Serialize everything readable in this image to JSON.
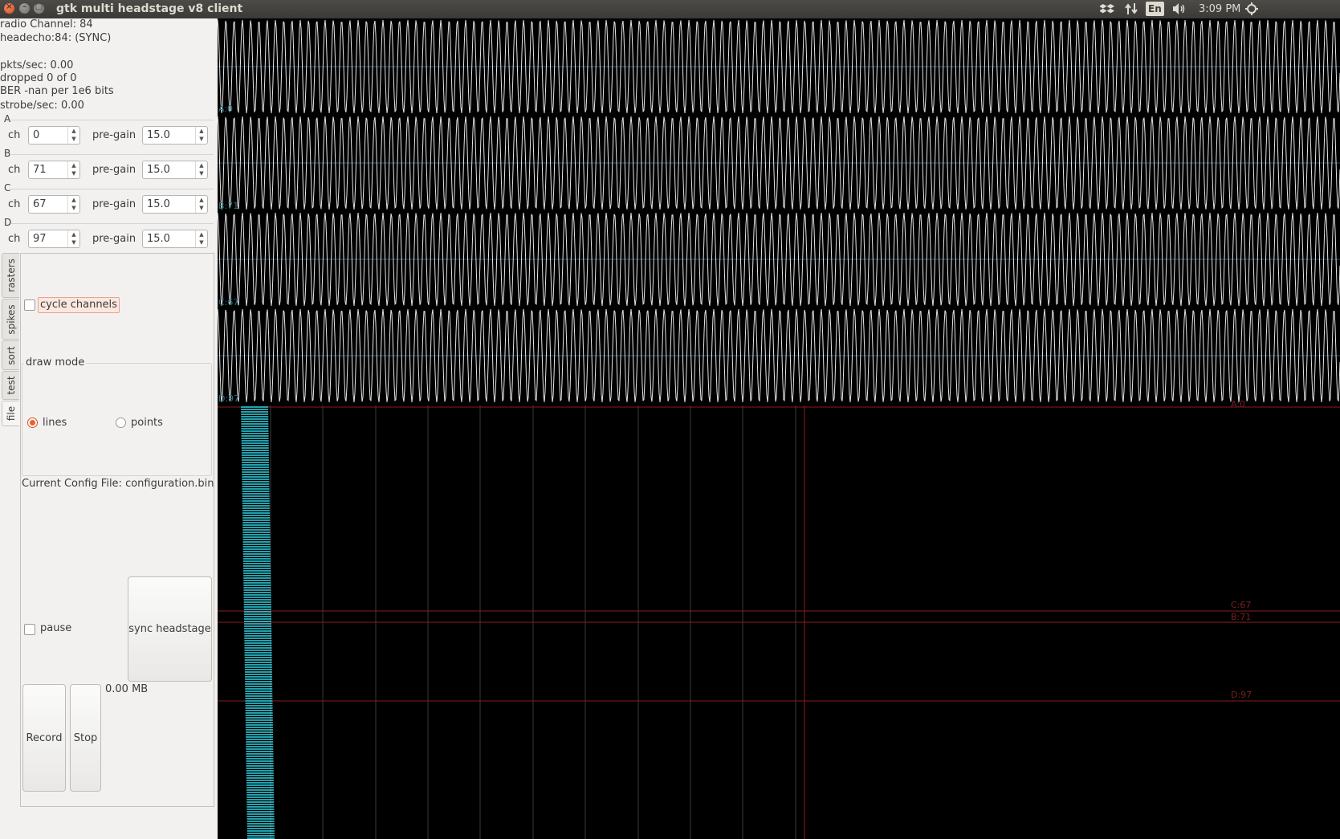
{
  "window": {
    "title": "gtk multi headstage v8 client",
    "close_icon": "close-icon",
    "minimize_icon": "minimize-icon",
    "maximize_icon": "maximize-icon"
  },
  "tray": {
    "keyboard_layout": "En",
    "clock": "3:09 PM"
  },
  "status": {
    "radio_channel": "radio Channel: 84",
    "headecho": "headecho:84: (SYNC)",
    "pkts": "pkts/sec: 0.00",
    "dropped": "dropped 0 of 0",
    "ber": "BER -nan per 1e6 bits",
    "strobe": "strobe/sec: 0.00"
  },
  "channel_groups": [
    {
      "letter": "A",
      "ch_label": "ch",
      "ch": "0",
      "gain_label": "pre-gain",
      "gain": "15.0"
    },
    {
      "letter": "B",
      "ch_label": "ch",
      "ch": "71",
      "gain_label": "pre-gain",
      "gain": "15.0"
    },
    {
      "letter": "C",
      "ch_label": "ch",
      "ch": "67",
      "gain_label": "pre-gain",
      "gain": "15.0"
    },
    {
      "letter": "D",
      "ch_label": "ch",
      "ch": "97",
      "gain_label": "pre-gain",
      "gain": "15.0"
    }
  ],
  "tabs": [
    "rasters",
    "spikes",
    "sort",
    "test",
    "file"
  ],
  "active_tab": "file",
  "options": {
    "cycle_channels": "cycle channels",
    "cycle_checked": false,
    "draw_mode_title": "draw mode",
    "mode_lines": "lines",
    "mode_points": "points",
    "selected_mode": "lines"
  },
  "config_file": "Current Config File: configuration.bin",
  "controls": {
    "pause": "pause",
    "pause_checked": false,
    "sync": "sync headstage",
    "record": "Record",
    "stop": "Stop",
    "file_size": "0.00 MB"
  },
  "scope": {
    "trace_labels": [
      "A:0",
      "B:71",
      "C:67",
      "D:97"
    ],
    "raster_labels": [
      "A:0",
      "C:67",
      "B:71",
      "D:97"
    ],
    "colors": {
      "trace": "#e6e6e6",
      "trace_midline": "#4a6fa0",
      "trace_label": "#2a6f80",
      "raster_bar": "#33d6e6",
      "raster_line": "#8a1c1c",
      "grid": "#3a3a3a"
    }
  }
}
